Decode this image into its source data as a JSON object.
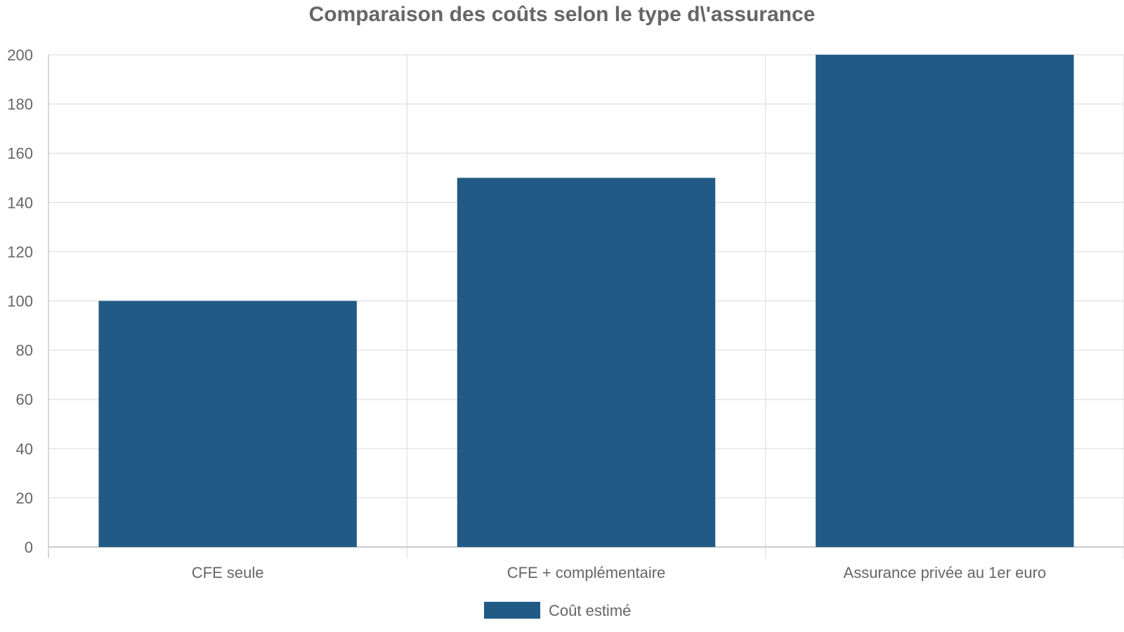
{
  "chart_data": {
    "type": "bar",
    "title": "Comparaison des coûts selon le type d\\'assurance",
    "categories": [
      "CFE seule",
      "CFE + complémentaire",
      "Assurance privée au 1er euro"
    ],
    "series": [
      {
        "name": "Coût estimé",
        "values": [
          100,
          150,
          200
        ],
        "color": "#215b85"
      }
    ],
    "ylim": [
      0,
      200
    ],
    "yticks": [
      0,
      20,
      40,
      60,
      80,
      100,
      120,
      140,
      160,
      180,
      200
    ],
    "grid": true,
    "legend_position": "bottom",
    "colors": {
      "grid": "#e4e4e4",
      "axis": "#cccccc",
      "text": "#666666"
    }
  }
}
